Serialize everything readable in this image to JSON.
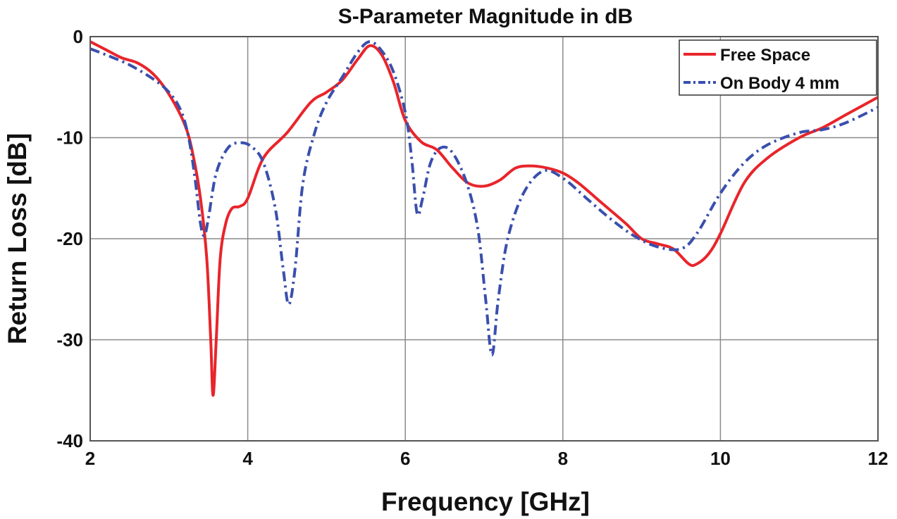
{
  "chart_data": {
    "type": "line",
    "title": "S-Parameter Magnitude in dB",
    "xlabel": "Frequency [GHz]",
    "ylabel": "Return Loss [dB]",
    "xlim": [
      2,
      12
    ],
    "ylim": [
      -40,
      0
    ],
    "xticks": [
      2,
      4,
      6,
      8,
      10,
      12
    ],
    "yticks": [
      0,
      -10,
      -20,
      -30,
      -40
    ],
    "xtick_labels": [
      "2",
      "4",
      "6",
      "8",
      "10",
      "12"
    ],
    "ytick_labels": [
      "0",
      "-10",
      "-20",
      "-30",
      "-40"
    ],
    "grid": true,
    "legend_position": "top-right",
    "series": [
      {
        "name": "Free Space",
        "color": "#e8252b",
        "line_style": "solid",
        "points": [
          [
            2.0,
            -0.5
          ],
          [
            2.2,
            -1.3
          ],
          [
            2.4,
            -2.1
          ],
          [
            2.6,
            -2.6
          ],
          [
            2.8,
            -3.7
          ],
          [
            3.0,
            -5.7
          ],
          [
            3.2,
            -8.7
          ],
          [
            3.3,
            -11.5
          ],
          [
            3.4,
            -16.0
          ],
          [
            3.48,
            -22.0
          ],
          [
            3.53,
            -30.0
          ],
          [
            3.56,
            -35.5
          ],
          [
            3.6,
            -30.0
          ],
          [
            3.65,
            -22.0
          ],
          [
            3.72,
            -18.5
          ],
          [
            3.8,
            -17.0
          ],
          [
            3.9,
            -16.8
          ],
          [
            4.0,
            -16.0
          ],
          [
            4.2,
            -12.0
          ],
          [
            4.5,
            -9.5
          ],
          [
            4.8,
            -6.5
          ],
          [
            5.0,
            -5.5
          ],
          [
            5.2,
            -4.3
          ],
          [
            5.4,
            -2.2
          ],
          [
            5.55,
            -0.9
          ],
          [
            5.7,
            -1.8
          ],
          [
            5.85,
            -4.5
          ],
          [
            6.0,
            -8.3
          ],
          [
            6.2,
            -10.4
          ],
          [
            6.4,
            -11.2
          ],
          [
            6.6,
            -13.0
          ],
          [
            6.8,
            -14.5
          ],
          [
            7.0,
            -14.8
          ],
          [
            7.2,
            -14.2
          ],
          [
            7.4,
            -13.0
          ],
          [
            7.6,
            -12.8
          ],
          [
            7.8,
            -13.0
          ],
          [
            8.0,
            -13.5
          ],
          [
            8.2,
            -14.5
          ],
          [
            8.5,
            -16.5
          ],
          [
            8.8,
            -18.5
          ],
          [
            9.0,
            -20.0
          ],
          [
            9.2,
            -20.5
          ],
          [
            9.4,
            -21.0
          ],
          [
            9.6,
            -22.5
          ],
          [
            9.7,
            -22.5
          ],
          [
            9.85,
            -21.5
          ],
          [
            10.0,
            -19.5
          ],
          [
            10.3,
            -14.5
          ],
          [
            10.6,
            -12.0
          ],
          [
            11.0,
            -10.0
          ],
          [
            11.3,
            -9.0
          ],
          [
            11.6,
            -7.7
          ],
          [
            12.0,
            -6.0
          ]
        ]
      },
      {
        "name": "On Body 4 mm",
        "color": "#3a4fad",
        "line_style": "dash-dot",
        "points": [
          [
            2.0,
            -1.2
          ],
          [
            2.2,
            -1.8
          ],
          [
            2.5,
            -2.8
          ],
          [
            2.8,
            -4.2
          ],
          [
            3.0,
            -5.5
          ],
          [
            3.15,
            -7.3
          ],
          [
            3.25,
            -10.0
          ],
          [
            3.33,
            -14.0
          ],
          [
            3.4,
            -18.5
          ],
          [
            3.45,
            -19.7
          ],
          [
            3.5,
            -18.0
          ],
          [
            3.6,
            -13.5
          ],
          [
            3.75,
            -11.0
          ],
          [
            3.9,
            -10.5
          ],
          [
            4.05,
            -10.9
          ],
          [
            4.2,
            -12.5
          ],
          [
            4.35,
            -17.0
          ],
          [
            4.45,
            -23.0
          ],
          [
            4.52,
            -26.5
          ],
          [
            4.6,
            -23.0
          ],
          [
            4.7,
            -14.5
          ],
          [
            4.85,
            -9.5
          ],
          [
            5.0,
            -6.5
          ],
          [
            5.2,
            -4.0
          ],
          [
            5.4,
            -1.5
          ],
          [
            5.55,
            -0.5
          ],
          [
            5.7,
            -1.4
          ],
          [
            5.85,
            -3.5
          ],
          [
            6.0,
            -7.5
          ],
          [
            6.08,
            -12.0
          ],
          [
            6.15,
            -17.5
          ],
          [
            6.22,
            -16.0
          ],
          [
            6.32,
            -12.5
          ],
          [
            6.45,
            -11.0
          ],
          [
            6.6,
            -11.5
          ],
          [
            6.78,
            -14.5
          ],
          [
            6.92,
            -19.0
          ],
          [
            7.02,
            -26.0
          ],
          [
            7.1,
            -31.5
          ],
          [
            7.18,
            -26.0
          ],
          [
            7.3,
            -20.0
          ],
          [
            7.5,
            -15.5
          ],
          [
            7.75,
            -13.3
          ],
          [
            8.0,
            -14.0
          ],
          [
            8.3,
            -16.0
          ],
          [
            8.6,
            -18.0
          ],
          [
            8.9,
            -19.7
          ],
          [
            9.2,
            -20.8
          ],
          [
            9.5,
            -21.0
          ],
          [
            9.7,
            -19.5
          ],
          [
            10.0,
            -15.5
          ],
          [
            10.3,
            -12.5
          ],
          [
            10.6,
            -10.7
          ],
          [
            11.0,
            -9.5
          ],
          [
            11.3,
            -9.2
          ],
          [
            11.6,
            -8.5
          ],
          [
            12.0,
            -7.0
          ]
        ]
      }
    ]
  }
}
